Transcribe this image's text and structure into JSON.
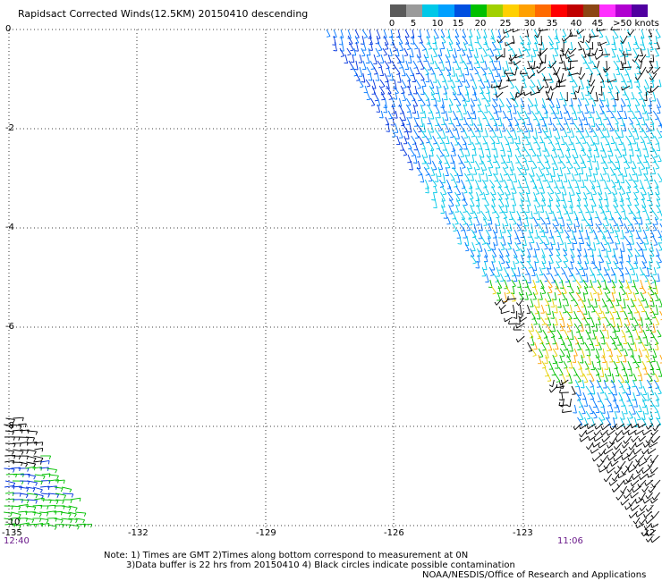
{
  "title": "Rapidsact Corrected Winds(12.5KM) 20150410 descending",
  "colorbar": {
    "labels": [
      "0",
      "5",
      "10",
      "15",
      "20",
      "25",
      "30",
      "35",
      "40",
      "45",
      ">50 knots"
    ],
    "colors": [
      "#5a5a5a",
      "#9a9a9a",
      "#00c8e8",
      "#00a0ff",
      "#0050e0",
      "#00c000",
      "#a0d000",
      "#ffd000",
      "#ffa000",
      "#ff6a00",
      "#ff0000",
      "#c00000",
      "#8b4513",
      "#ff30ff",
      "#b000d0",
      "#5000a0"
    ]
  },
  "axes": {
    "x_labels": [
      "-135",
      "-132",
      "-129",
      "-126",
      "-123",
      "-12"
    ],
    "y_labels": [
      "0",
      "-2",
      "-4",
      "-6",
      "-8",
      "-10"
    ]
  },
  "times": {
    "left": "12:40",
    "right": "11:06"
  },
  "notes": [
    "Note: 1) Times are GMT 2)Times along bottom correspond to measurement at 0N",
    "3)Data buffer is 22 hrs from 20150410 4) Black circles indicate possible contamination",
    "NOAA/NESDIS/Office of Research and Applications"
  ],
  "wind_colors": {
    "black": "#000000",
    "dark_blue": "#0033dd",
    "blue": "#0077ff",
    "cyan": "#00c8e8",
    "green": "#00c000",
    "yellow": "#e6d000",
    "orange": "#ffa000"
  }
}
